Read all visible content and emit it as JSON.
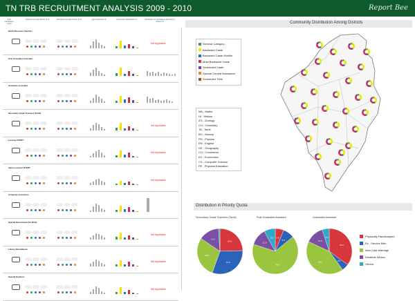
{
  "header": {
    "title": "TN TRB RECRUITMENT ANALYSIS 2009 - 2010",
    "brand": "Report Bee"
  },
  "columns": [
    "Total Candidates Listed",
    "Selected Female Priority % %",
    "Shortlisted Female Priority % %",
    "Age Distribution %",
    "Community Distribution %",
    "Distribution of Candidates Selected by Subject %"
  ],
  "recruitments": [
    {
      "name": "Block Resource Teachers",
      "not_applicable": "Not Applicable"
    },
    {
      "name": "Post Graduates Assistant",
      "not_applicable": ""
    },
    {
      "name": "Graduates Assistant",
      "not_applicable": ""
    },
    {
      "name": "Secondary Grade Teachers (Tamil)",
      "not_applicable": "Not Applicable"
    },
    {
      "name": "Lecturer DTERT",
      "not_applicable": "Not Applicable"
    },
    {
      "name": "Junior Lecturer DTERT",
      "not_applicable": "Not Applicable"
    },
    {
      "name": "Computer Instructors",
      "not_applicable": ""
    },
    {
      "name": "Special Recruitment For Blind",
      "not_applicable": "Not Applicable"
    },
    {
      "name": "Library Recruitment",
      "not_applicable": "Not Applicable"
    },
    {
      "name": "Special Teachers",
      "not_applicable": "Not Applicable"
    }
  ],
  "map": {
    "title": "Community Distribution Among Districts"
  },
  "community_legend": [
    {
      "label": "General Category",
      "color": "#3a9e3f"
    },
    {
      "label": "Backward Caste",
      "color": "#f2e400"
    },
    {
      "label": "Backward Caste Muslim",
      "color": "#1e73c9"
    },
    {
      "label": "Most Backward Caste",
      "color": "#d72e45"
    },
    {
      "label": "Scheduled Caste",
      "color": "#7b3fa0"
    },
    {
      "label": "Special Central Assistance",
      "color": "#f0841e"
    },
    {
      "label": "Scheduled Tribe",
      "color": "#8a5a2b"
    }
  ],
  "subject_abbrev": [
    "MA - Maths",
    "HI - History",
    "ZO - Zoology",
    "CH - Chemistry",
    "TA - Tamil",
    "BO - Botany",
    "PH - Physics",
    "EN - English",
    "GE - Geography",
    "CO - Commerce",
    "EC - Economics",
    "CS - Computer Science",
    "PE - Physical Education"
  ],
  "quota": {
    "title": "Distribution in Priority Quota"
  },
  "quota_legend": [
    {
      "label": "Physically Handicapped",
      "color": "#d7373c"
    },
    {
      "label": "Ex - Service Men",
      "color": "#2b63b8"
    },
    {
      "label": "Inter Cast Marriage",
      "color": "#9ac53f"
    },
    {
      "label": "Destitute Widow",
      "color": "#7b4fa3"
    },
    {
      "label": "Others",
      "color": "#2fa8c9"
    }
  ],
  "chart_data": [
    {
      "type": "pie",
      "title": "Secondary Grade Teachers (Tamil)",
      "categories": [
        "Physically Handicapped",
        "Ex - Service Men",
        "Inter Cast Marriage",
        "Destitute Widow",
        "Others"
      ],
      "values": [
        24.5,
        31.0,
        29.0,
        14.5,
        1.0
      ]
    },
    {
      "type": "pie",
      "title": "Post Graduates Assistant",
      "categories": [
        "Physically Handicapped",
        "Ex - Service Men",
        "Inter Cast Marriage",
        "Destitute Widow",
        "Others"
      ],
      "values": [
        6.0,
        8.0,
        66.0,
        12.0,
        8.0
      ]
    },
    {
      "type": "pie",
      "title": "Graduates Assistant",
      "categories": [
        "Physically Handicapped",
        "Ex - Service Men",
        "Inter Cast Marriage",
        "Destitute Widow",
        "Others"
      ],
      "values": [
        35.0,
        5.0,
        42.0,
        13.0,
        5.0
      ]
    }
  ]
}
